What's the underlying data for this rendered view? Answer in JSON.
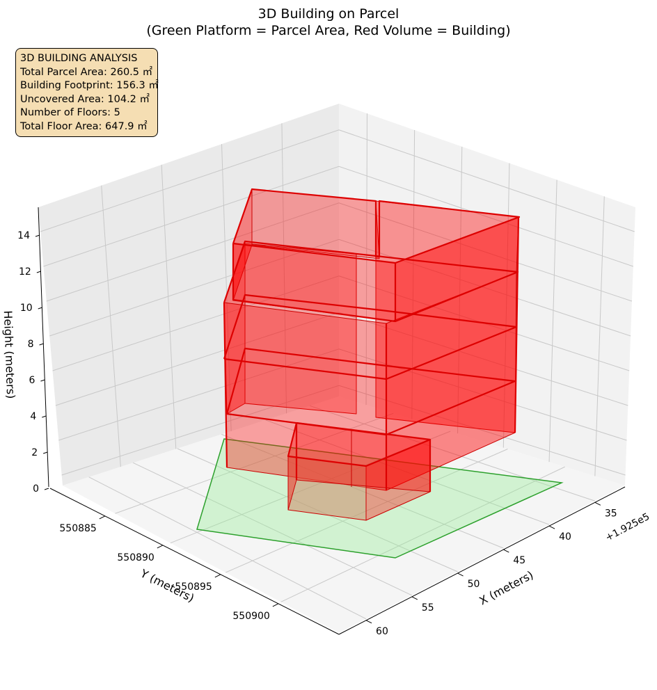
{
  "chart_data": {
    "type": "3d-polygon",
    "title": "3D Building on Parcel",
    "subtitle": "(Green Platform = Parcel Area, Red Volume = Building)",
    "xlabel": "X (meters)",
    "ylabel": "Y (meters)",
    "zlabel": "Height (meters)",
    "x_offset_label": "+1.925e5",
    "x_ticks": [
      "35",
      "40",
      "45",
      "50",
      "55",
      "60"
    ],
    "y_ticks": [
      "550885",
      "550890",
      "550895",
      "550900"
    ],
    "z_ticks": [
      "0",
      "2",
      "4",
      "6",
      "8",
      "10",
      "12",
      "14"
    ],
    "grid": true,
    "colors": {
      "parcel_fill": "#90ee90",
      "parcel_edge": "#2ca02c",
      "building_fill": "#ff0000",
      "building_edge": "#cc0000",
      "info_box": "#f5deb3"
    }
  },
  "info": {
    "heading": "3D BUILDING ANALYSIS",
    "lines": [
      "Total Parcel Area: 260.5 ㎡",
      "Building Footprint: 156.3 ㎡",
      "Uncovered Area: 104.2 ㎡",
      "Number of Floors: 5",
      "Total Floor Area: 647.9 ㎡"
    ]
  }
}
